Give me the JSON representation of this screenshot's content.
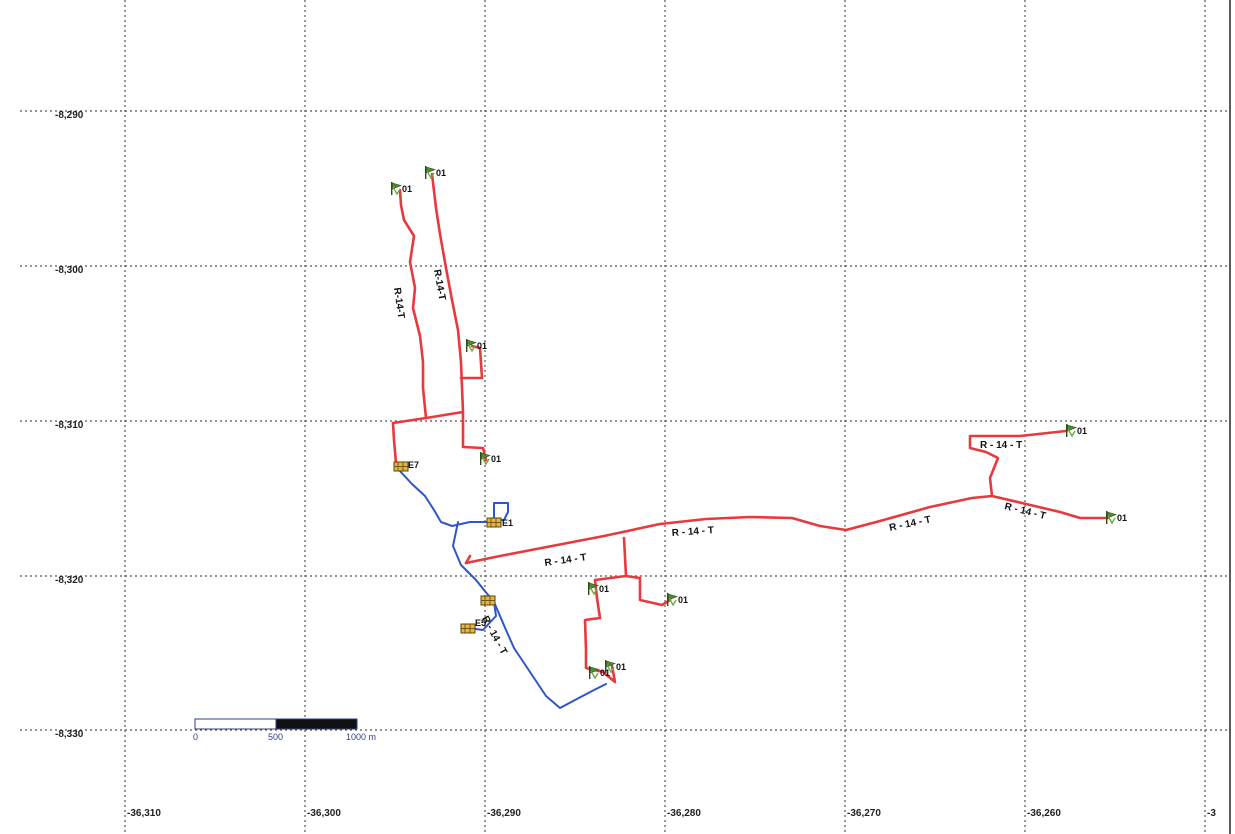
{
  "y_axis_labels": [
    "-8,290",
    "-8,300",
    "-8,310",
    "-8,320",
    "-8,330"
  ],
  "x_axis_labels": [
    "-36,310",
    "-36,300",
    "-36,290",
    "-36,280",
    "-36,270",
    "-36,260",
    "-3"
  ],
  "route_label": "R - 14 - T",
  "route_label_vertical": "R-14-T",
  "site_labels": {
    "flag": "01",
    "e7": "E7",
    "e1": "E1",
    "e5": "E5"
  },
  "scale_bar": {
    "label_0": "0",
    "label_500": "500",
    "label_1000": "1000 m",
    "color_light": "#ffffff",
    "color_dark": "#111111"
  },
  "colors": {
    "red_route": "#e8393c",
    "blue_route": "#2f56c8",
    "grid": "#555555",
    "flag_green": "#4e8b2d",
    "station_yellow": "#e3b53c"
  }
}
